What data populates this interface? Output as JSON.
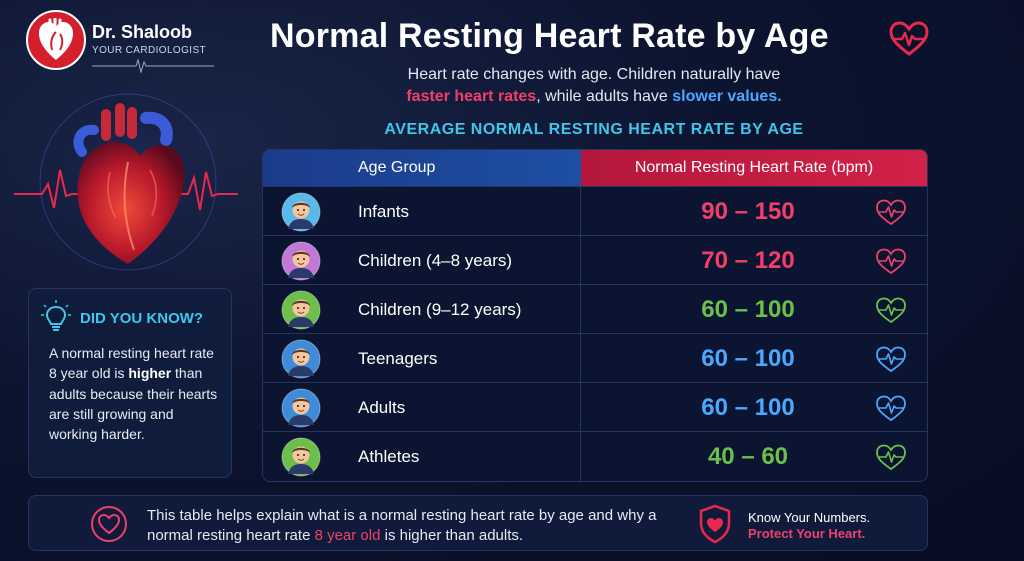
{
  "brand": {
    "name": "Dr. Shaloob",
    "tagline": "YOUR CARDIOLOGIST"
  },
  "title": "Normal Resting Heart Rate by Age",
  "subtitle": {
    "line1": "Heart rate changes with age. Children naturally have",
    "red": "faster heart rates",
    "mid": ", while adults have ",
    "blue": "slower values."
  },
  "section_heading": "AVERAGE NORMAL RESTING HEART RATE BY AGE",
  "did_you_know": {
    "title": "DID YOU KNOW?",
    "text_pre": "A normal resting heart rate 8 year old is ",
    "text_bold": "higher",
    "text_post": " than adults because their hearts are still growing and working harder."
  },
  "table": {
    "headers": {
      "age": "Age Group",
      "rate": "Normal Resting Heart Rate (bpm)"
    },
    "rows": [
      {
        "age": "Infants",
        "rate": "90 – 150",
        "color": "#f0406a",
        "avatar_color": "#58b9ea",
        "avatar": "infant-avatar"
      },
      {
        "age": "Children (4–8 years)",
        "rate": "70 – 120",
        "color": "#f0406a",
        "avatar_color": "#c278d8",
        "avatar": "child-girl-avatar"
      },
      {
        "age": "Children (9–12 years)",
        "rate": "60 – 100",
        "color": "#6cc04a",
        "avatar_color": "#6cc04a",
        "avatar": "child-boy-avatar"
      },
      {
        "age": "Teenagers",
        "rate": "60 – 100",
        "color": "#4aa8ff",
        "avatar_color": "#3d8bd9",
        "avatar": "teenager-avatar"
      },
      {
        "age": "Adults",
        "rate": "60 – 100",
        "color": "#4aa8ff",
        "avatar_color": "#3d8bd9",
        "avatar": "adult-avatar"
      },
      {
        "age": "Athletes",
        "rate": "40 – 60",
        "color": "#6cc04a",
        "avatar_color": "#6cc04a",
        "avatar": "athlete-avatar"
      }
    ]
  },
  "footer": {
    "text_pre": "This table helps explain what is a normal resting heart rate by age and why a normal resting heart rate ",
    "text_highlight": "8 year old",
    "text_post": " is higher than adults.",
    "tagline1": "Know Your Numbers.",
    "tagline2": "Protect Your Heart."
  },
  "colors": {
    "accent_red": "#f0406a",
    "accent_blue": "#4aa8ff",
    "accent_green": "#6cc04a",
    "accent_cyan": "#3fc6ea"
  }
}
